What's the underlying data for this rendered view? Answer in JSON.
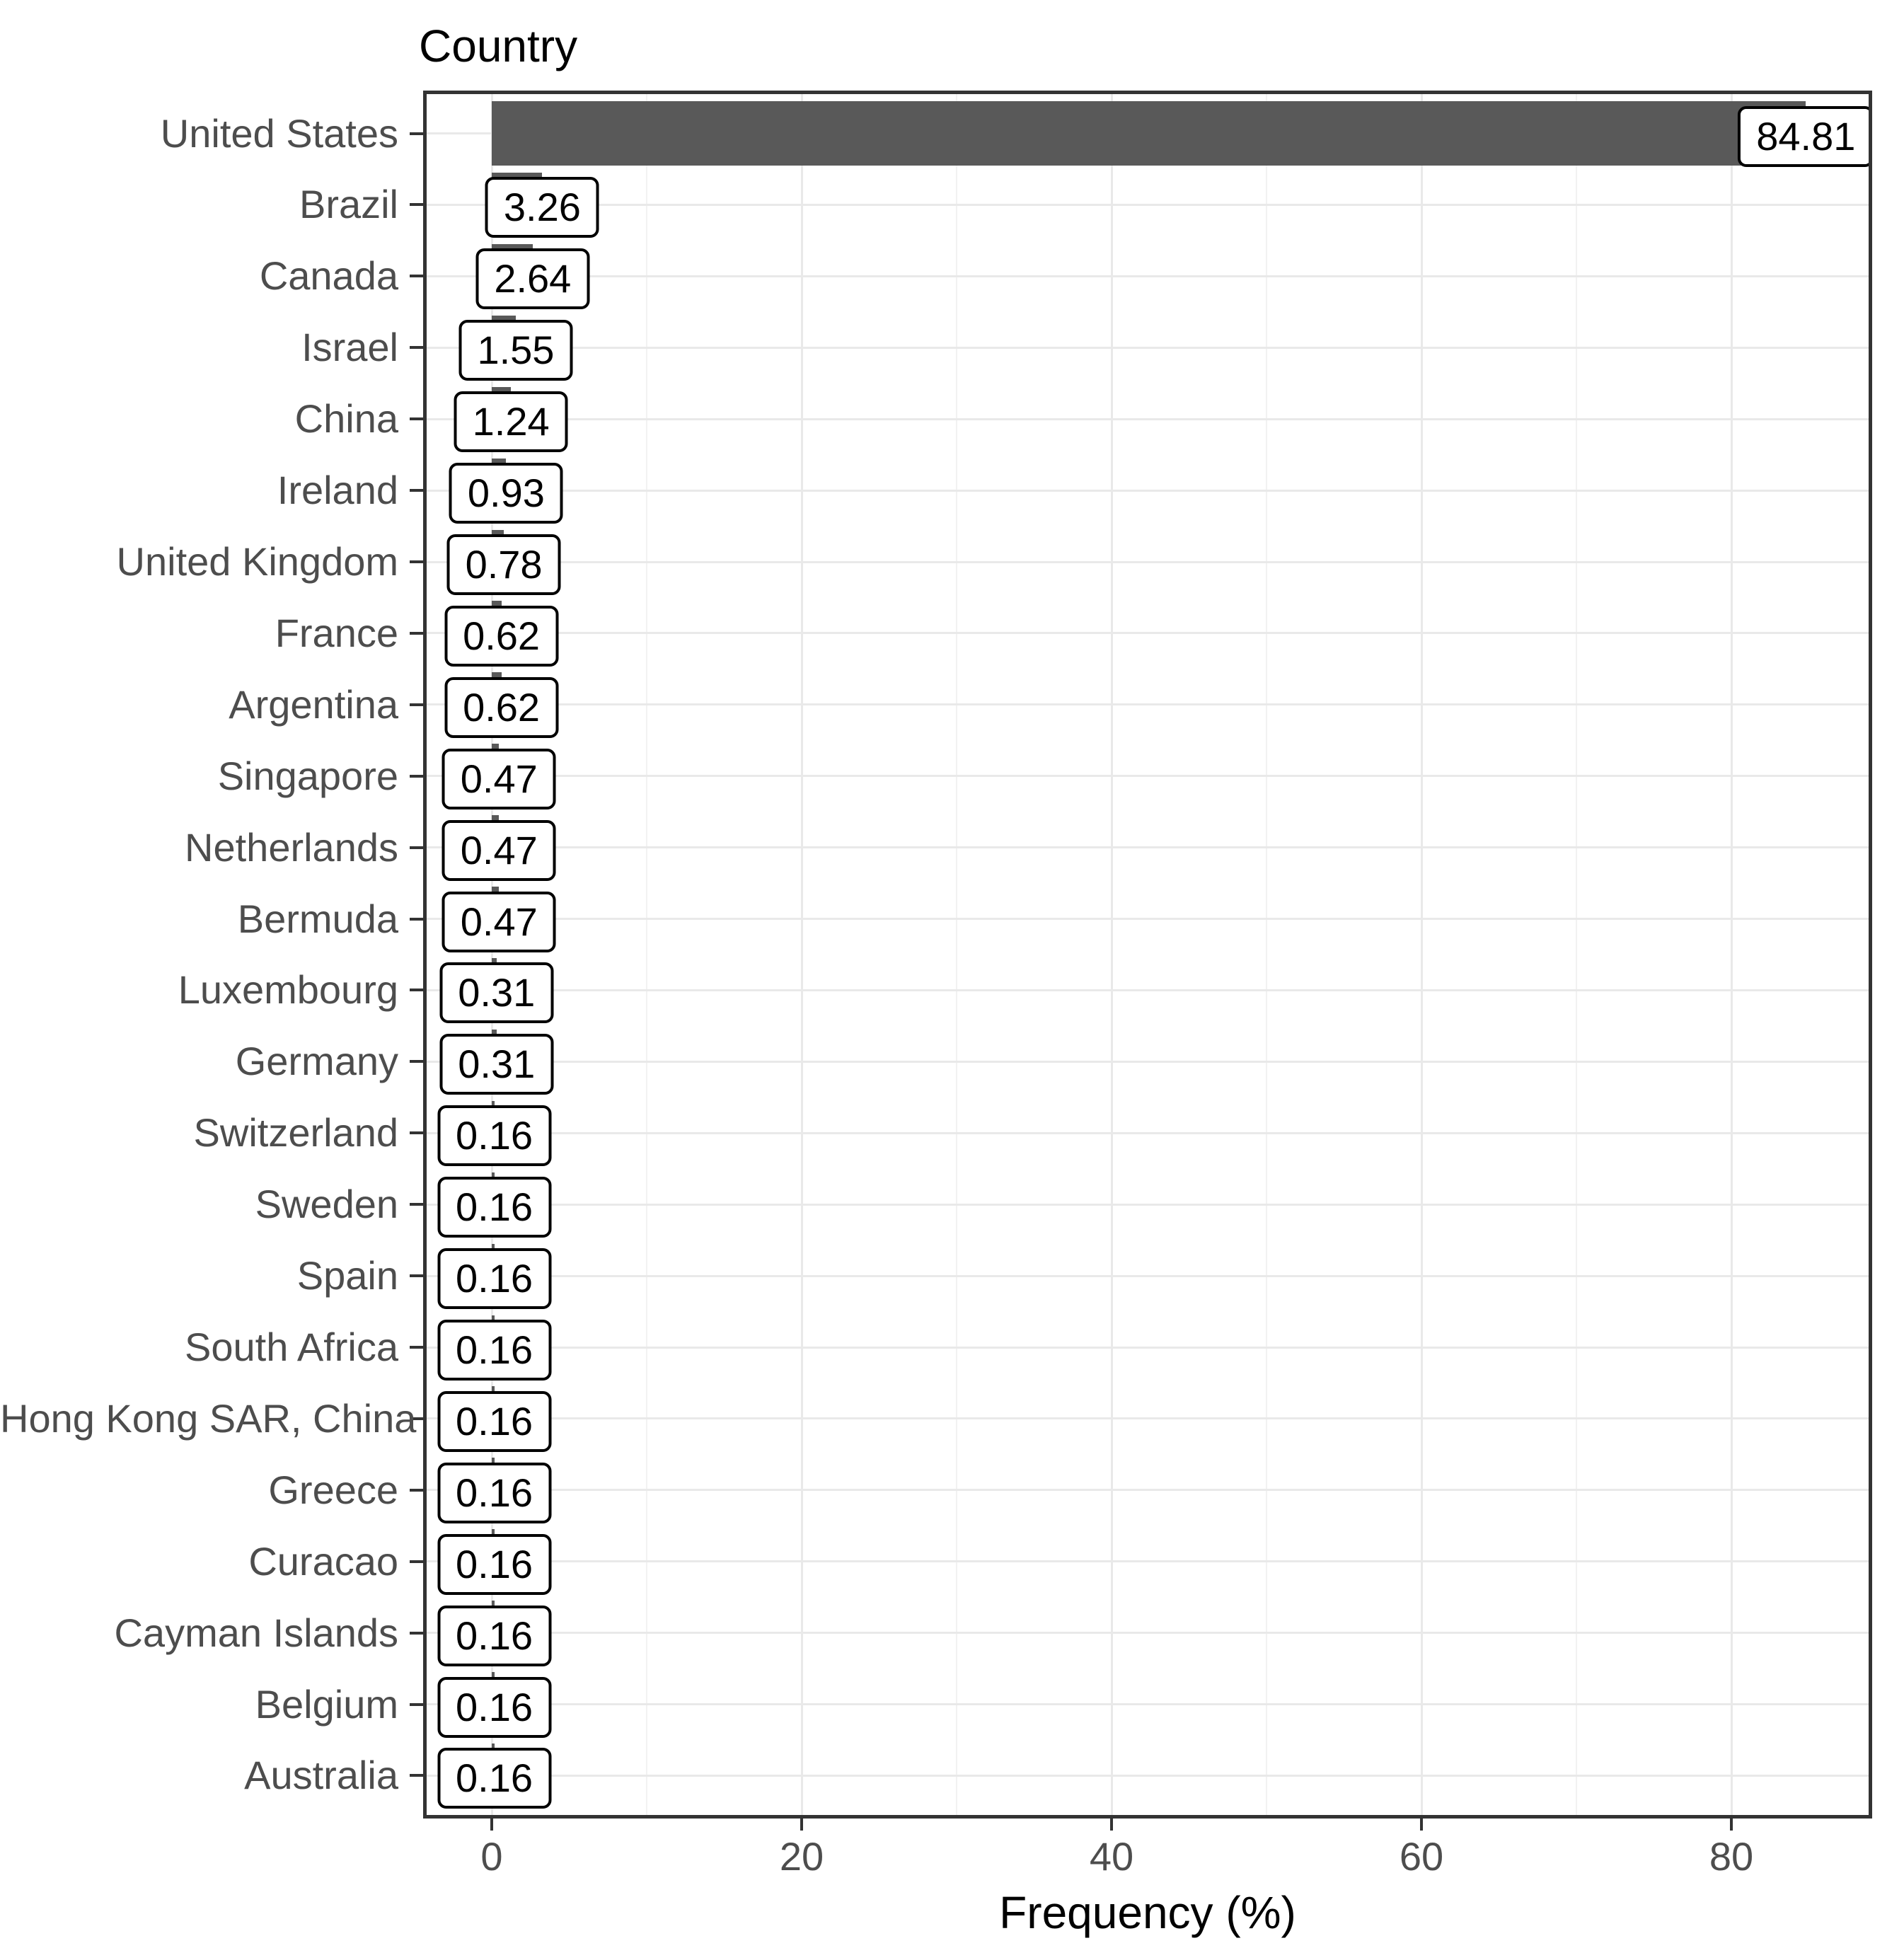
{
  "chart_data": {
    "type": "bar",
    "orientation": "horizontal",
    "title": "Country",
    "xlabel": "Frequency (%)",
    "ylabel": "",
    "categories": [
      "United States",
      "Brazil",
      "Canada",
      "Israel",
      "China",
      "Ireland",
      "United Kingdom",
      "France",
      "Argentina",
      "Singapore",
      "Netherlands",
      "Bermuda",
      "Luxembourg",
      "Germany",
      "Switzerland",
      "Sweden",
      "Spain",
      "South Africa",
      "Hong Kong SAR, China",
      "Greece",
      "Curacao",
      "Cayman Islands",
      "Belgium",
      "Australia"
    ],
    "values": [
      84.81,
      3.26,
      2.64,
      1.55,
      1.24,
      0.93,
      0.78,
      0.62,
      0.62,
      0.47,
      0.47,
      0.47,
      0.31,
      0.31,
      0.16,
      0.16,
      0.16,
      0.16,
      0.16,
      0.16,
      0.16,
      0.16,
      0.16,
      0.16
    ],
    "value_labels": [
      "84.81",
      "3.26",
      "2.64",
      "1.55",
      "1.24",
      "0.93",
      "0.78",
      "0.62",
      "0.62",
      "0.47",
      "0.47",
      "0.47",
      "0.31",
      "0.31",
      "0.16",
      "0.16",
      "0.16",
      "0.16",
      "0.16",
      "0.16",
      "0.16",
      "0.16",
      "0.16",
      "0.16"
    ],
    "x_ticks_major": [
      0,
      20,
      40,
      60,
      80
    ],
    "x_tick_labels": [
      "0",
      "20",
      "40",
      "60",
      "80"
    ],
    "x_ticks_minor": [
      10,
      30,
      50,
      70
    ],
    "xlim": [
      -4.4,
      89.1
    ],
    "grid": true,
    "legend": false,
    "colors": {
      "bar": "#595959",
      "grid_major": "#e9e9e9",
      "grid_minor": "#f2f2f2",
      "panel_border": "#333333",
      "axis_text": "#4d4d4d",
      "title_text": "#000000",
      "label_box_bg": "#ffffff",
      "label_box_border": "#000000",
      "panel_bg": "#ffffff"
    }
  }
}
